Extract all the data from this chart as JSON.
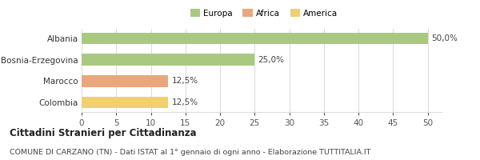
{
  "categories": [
    "Albania",
    "Bosnia-Erzegovina",
    "Marocco",
    "Colombia"
  ],
  "values": [
    50.0,
    25.0,
    12.5,
    12.5
  ],
  "bar_colors": [
    "#a8c97f",
    "#a8c97f",
    "#e8a87c",
    "#f0d070"
  ],
  "labels": [
    "50,0%",
    "25,0%",
    "12,5%",
    "12,5%"
  ],
  "legend": [
    {
      "label": "Europa",
      "color": "#a8c97f"
    },
    {
      "label": "Africa",
      "color": "#e8a87c"
    },
    {
      "label": "America",
      "color": "#f0d070"
    }
  ],
  "xlim": [
    0,
    52
  ],
  "xticks": [
    0,
    5,
    10,
    15,
    20,
    25,
    30,
    35,
    40,
    45,
    50
  ],
  "title_bold": "Cittadini Stranieri per Cittadinanza",
  "subtitle": "COMUNE DI CARZANO (TN) - Dati ISTAT al 1° gennaio di ogni anno - Elaborazione TUTTITALIA.IT",
  "background_color": "#ffffff",
  "grid_color": "#dddddd",
  "label_fontsize": 7.5,
  "bar_label_fontsize": 7.5,
  "title_fontsize": 8.5,
  "subtitle_fontsize": 6.8
}
